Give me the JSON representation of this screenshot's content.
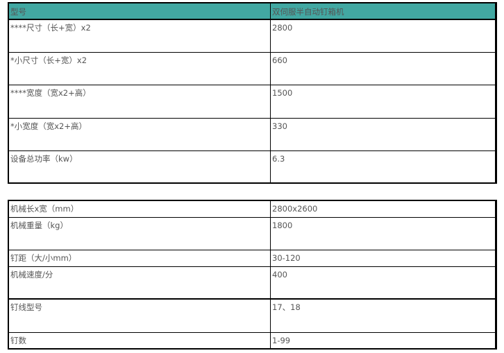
{
  "accent_color": "#42a8a2",
  "table1": {
    "header": [
      "型号",
      "双伺服半自动钉箱机"
    ],
    "rows": [
      [
        "****尺寸（长+宽）x2",
        "2800"
      ],
      [
        "*小尺寸（长+宽）x2",
        "660"
      ],
      [
        "****宽度（宽x2+高）",
        "1500"
      ],
      [
        "*小宽度（宽x2+高）",
        "330"
      ],
      [
        "设备总功率（kw）",
        "6.3"
      ]
    ]
  },
  "table2": {
    "rows": [
      [
        "机械长x宽（mm）",
        "2800x2600"
      ],
      [
        "机械重量（kg）",
        "1800"
      ],
      [
        "钉距（大/小mm）",
        "30-120"
      ],
      [
        "机械速度/分",
        "400"
      ],
      [
        "钉线型号",
        "17、18"
      ],
      [
        "钉数",
        "1-99"
      ]
    ]
  }
}
